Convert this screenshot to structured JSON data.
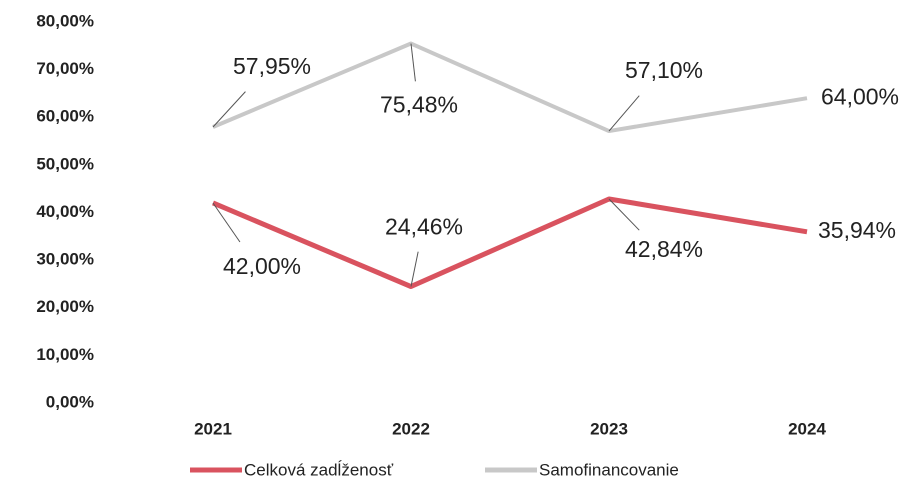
{
  "chart_data": {
    "type": "line",
    "categories": [
      "2021",
      "2022",
      "2023",
      "2024"
    ],
    "series": [
      {
        "name": "Celková zadĺženosť",
        "color": "#d9535f",
        "values": [
          42,
          24.46,
          42.84,
          35.94
        ],
        "value_labels": [
          "42,00%",
          "24,46%",
          "42,84%",
          "35,94%"
        ]
      },
      {
        "name": "Samofinancovanie",
        "color": "#c8c8c8",
        "values": [
          57.95,
          75.48,
          57.1,
          64
        ],
        "value_labels": [
          "57,95%",
          "75,48%",
          "57,10%",
          "64,00%"
        ]
      }
    ],
    "ylim": [
      0,
      80
    ],
    "yticks": [
      {
        "value": 0,
        "label": "0,00%"
      },
      {
        "value": 10,
        "label": "10,00%"
      },
      {
        "value": 20,
        "label": "20,00%"
      },
      {
        "value": 30,
        "label": "30,00%"
      },
      {
        "value": 40,
        "label": "40,00%"
      },
      {
        "value": 50,
        "label": "50,00%"
      },
      {
        "value": 60,
        "label": "60,00%"
      },
      {
        "value": 70,
        "label": "70,00%"
      },
      {
        "value": 80,
        "label": "80,00%"
      }
    ],
    "grid": false,
    "legend": "bottom"
  }
}
